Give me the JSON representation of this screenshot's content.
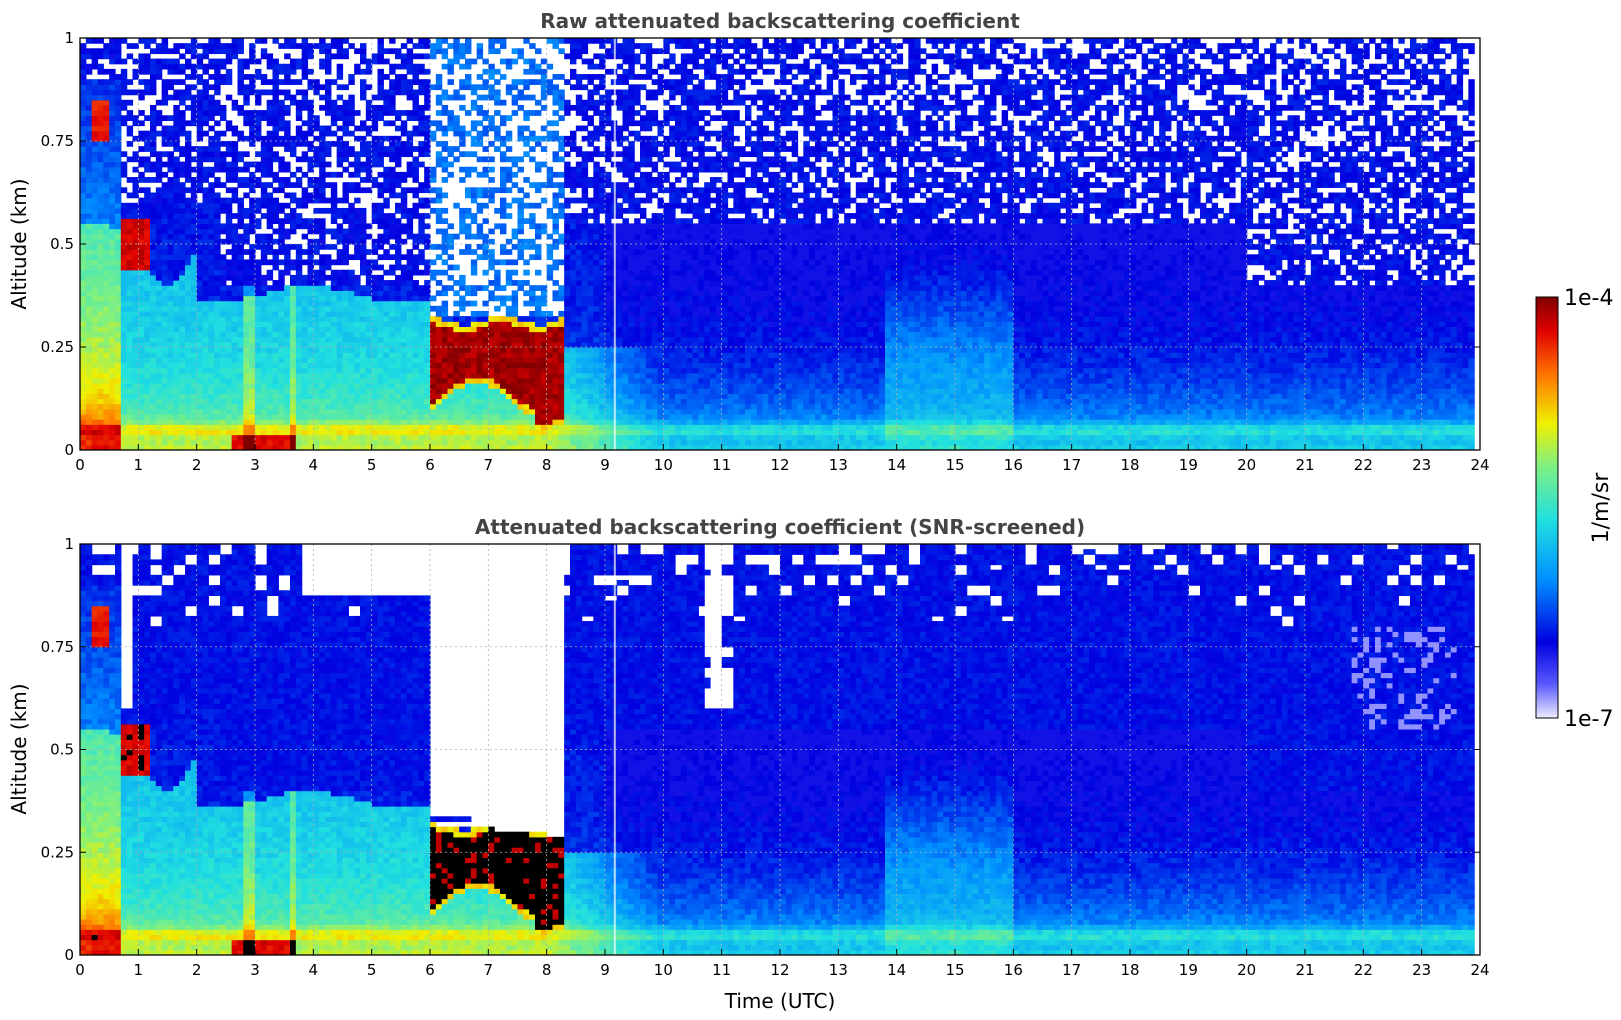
{
  "chart_data": [
    {
      "type": "heatmap",
      "title": "Raw attenuated backscattering coefficient",
      "xlabel": "",
      "ylabel": "Altitude (km)",
      "xlim": [
        0,
        24
      ],
      "ylim": [
        0,
        1
      ],
      "xticks": [
        "0",
        "1",
        "2",
        "3",
        "4",
        "5",
        "6",
        "7",
        "8",
        "9",
        "10",
        "11",
        "12",
        "13",
        "14",
        "15",
        "16",
        "17",
        "18",
        "19",
        "20",
        "21",
        "22",
        "23",
        "24"
      ],
      "yticks": [
        "0",
        "0.25",
        "0.5",
        "0.75",
        "1"
      ],
      "grid": true,
      "features": [
        {
          "x": [
            0.2,
            0.5
          ],
          "y": [
            0.75,
            0.9
          ],
          "value": "high"
        },
        {
          "x": [
            0.7,
            1.2
          ],
          "y": [
            0.45,
            0.55
          ],
          "value": "high"
        },
        {
          "x": [
            2.5,
            3.7
          ],
          "y": [
            0,
            0.04
          ],
          "value": "high"
        },
        {
          "x": [
            6.0,
            8.3
          ],
          "y": [
            0.12,
            0.3
          ],
          "value": "high"
        }
      ]
    },
    {
      "type": "heatmap",
      "title": "Attenuated backscattering coefficient (SNR-screened)",
      "xlabel": "Time (UTC)",
      "ylabel": "Altitude (km)",
      "xlim": [
        0,
        24
      ],
      "ylim": [
        0,
        1
      ],
      "xticks": [
        "0",
        "1",
        "2",
        "3",
        "4",
        "5",
        "6",
        "7",
        "8",
        "9",
        "10",
        "11",
        "12",
        "13",
        "14",
        "15",
        "16",
        "17",
        "18",
        "19",
        "20",
        "21",
        "22",
        "23",
        "24"
      ],
      "yticks": [
        "0",
        "0.25",
        "0.5",
        "0.75",
        "1"
      ],
      "grid": true,
      "features": [
        {
          "x": [
            0.7,
            1.2
          ],
          "y": [
            0.45,
            0.55
          ],
          "value": "saturated"
        },
        {
          "x": [
            2.5,
            3.7
          ],
          "y": [
            0,
            0.04
          ],
          "value": "high"
        },
        {
          "x": [
            6.0,
            8.3
          ],
          "y": [
            0.12,
            0.3
          ],
          "value": "saturated"
        }
      ]
    }
  ],
  "colorbar": {
    "label": "1/m/sr",
    "max_label": "1e-4",
    "min_label": "1e-7",
    "scale": "log",
    "colors": [
      "#ececff",
      "#0000e0",
      "#00a0ff",
      "#30f0d0",
      "#f0f000",
      "#ff5000",
      "#800000"
    ]
  }
}
